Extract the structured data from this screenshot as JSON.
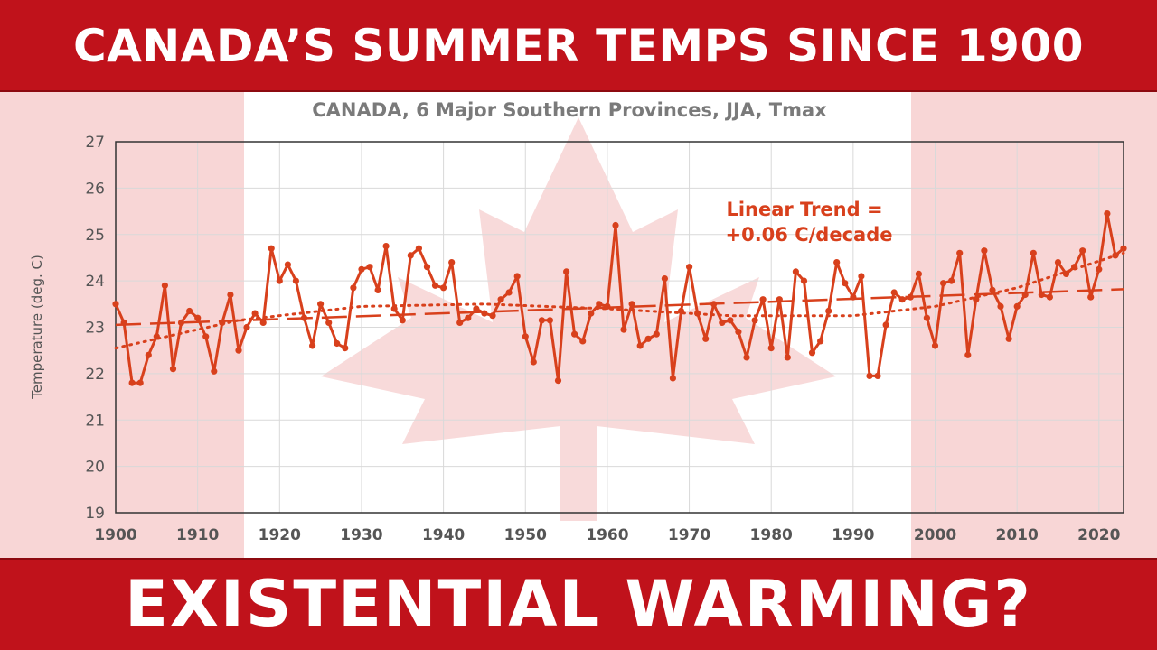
{
  "headline_top": "CANADA’S SUMMER TEMPS SINCE 1900",
  "headline_bottom": "EXISTENTIAL WARMING?",
  "colors": {
    "banner": "#c0121b",
    "flag_pale": "#f8d6d6",
    "series": "#d8401c",
    "title_text": "#7a7a7a"
  },
  "chart_data": {
    "type": "line",
    "title": "CANADA, 6 Major Southern Provinces, JJA, Tmax",
    "xlabel": "",
    "ylabel": "Temperature (deg. C)",
    "xlim": [
      1900,
      2023
    ],
    "ylim": [
      19,
      27
    ],
    "xticks": [
      1900,
      1910,
      1920,
      1930,
      1940,
      1950,
      1960,
      1970,
      1980,
      1990,
      2000,
      2010,
      2020
    ],
    "yticks": [
      19,
      20,
      21,
      22,
      23,
      24,
      25,
      26,
      27
    ],
    "grid": true,
    "annotation": [
      "Linear Trend =",
      "+0.06 C/decade"
    ],
    "series": [
      {
        "x": [
          1900,
          1901,
          1902,
          1903,
          1904,
          1905,
          1906,
          1907,
          1908,
          1909,
          1910,
          1911,
          1912,
          1913,
          1914,
          1915,
          1916,
          1917,
          1918,
          1919,
          1920,
          1921,
          1922,
          1923,
          1924,
          1925,
          1926,
          1927,
          1928,
          1929,
          1930,
          1931,
          1932,
          1933,
          1934,
          1935,
          1936,
          1937,
          1938,
          1939,
          1940,
          1941,
          1942,
          1943,
          1944,
          1945,
          1946,
          1947,
          1948,
          1949,
          1950,
          1951,
          1952,
          1953,
          1954,
          1955,
          1956,
          1957,
          1958,
          1959,
          1960,
          1961,
          1962,
          1963,
          1964,
          1965,
          1966,
          1967,
          1968,
          1969,
          1970,
          1971,
          1972,
          1973,
          1974,
          1975,
          1976,
          1977,
          1978,
          1979,
          1980,
          1981,
          1982,
          1983,
          1984,
          1985,
          1986,
          1987,
          1988,
          1989,
          1990,
          1991,
          1992,
          1993,
          1994,
          1995,
          1996,
          1997,
          1998,
          1999,
          2000,
          2001,
          2002,
          2003,
          2004,
          2005,
          2006,
          2007,
          2008,
          2009,
          2010,
          2011,
          2012,
          2013,
          2014,
          2015,
          2016,
          2017,
          2018,
          2019,
          2020,
          2021,
          2022,
          2023
        ],
        "values": [
          23.5,
          23.1,
          21.8,
          21.8,
          22.4,
          22.8,
          23.9,
          22.1,
          23.1,
          23.35,
          23.2,
          22.8,
          22.05,
          23.1,
          23.7,
          22.5,
          23.0,
          23.3,
          23.1,
          24.7,
          24.0,
          24.35,
          24.0,
          23.2,
          22.6,
          23.5,
          23.1,
          22.65,
          22.55,
          23.85,
          24.25,
          24.3,
          23.8,
          24.75,
          23.4,
          23.15,
          24.55,
          24.7,
          24.3,
          23.9,
          23.85,
          24.4,
          23.1,
          23.2,
          23.4,
          23.3,
          23.25,
          23.6,
          23.75,
          24.1,
          22.8,
          22.25,
          23.15,
          23.15,
          21.85,
          24.2,
          22.85,
          22.7,
          23.3,
          23.5,
          23.45,
          25.2,
          22.95,
          23.5,
          22.6,
          22.75,
          22.85,
          24.05,
          21.9,
          23.35,
          24.3,
          23.3,
          22.75,
          23.5,
          23.1,
          23.15,
          22.9,
          22.35,
          23.15,
          23.6,
          22.55,
          23.6,
          22.35,
          24.2,
          24.0,
          22.45,
          22.7,
          23.35,
          24.4,
          23.95,
          23.65,
          24.1,
          21.95,
          21.95,
          23.05,
          23.75,
          23.6,
          23.65,
          24.15,
          23.2,
          22.6,
          23.95,
          24.0,
          24.6,
          22.4,
          23.6,
          24.65,
          23.8,
          23.45,
          22.75,
          23.45,
          23.7,
          24.6,
          23.7,
          23.65,
          24.4,
          24.15,
          24.3,
          24.65,
          23.65,
          24.25,
          25.45,
          24.55,
          24.7
        ]
      }
    ],
    "trend_lines": [
      {
        "style": "dashed",
        "x": [
          1900,
          2023
        ],
        "y": [
          23.05,
          23.82
        ]
      },
      {
        "style": "dotted",
        "x": [
          1900,
          1915,
          1930,
          1945,
          1960,
          1975,
          1990,
          2000,
          2010,
          2023
        ],
        "y": [
          22.55,
          23.15,
          23.45,
          23.5,
          23.4,
          23.25,
          23.25,
          23.45,
          23.85,
          24.6
        ]
      }
    ]
  }
}
